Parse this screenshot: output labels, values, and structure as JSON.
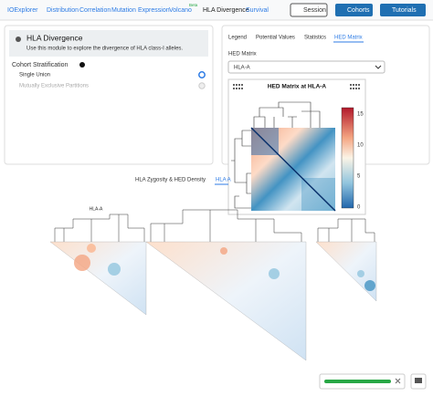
{
  "navbar": {
    "brand": "IOExplorer",
    "links": [
      "Distribution",
      "Correlation",
      "Mutation",
      "Expression",
      "Volcano",
      "HLA Divergence",
      "Survival"
    ],
    "beta": "Beta",
    "buttons": [
      "Session",
      "Cohorts",
      "Tutorials"
    ]
  },
  "module": {
    "title": "HLA Divergence",
    "description": "Use this module to explore the divergence of HLA class-I alleles.",
    "stratification_label": "Cohort Stratification",
    "options": [
      "Single Union",
      "Mutually Exclusive Partitions"
    ]
  },
  "panel": {
    "tabs": [
      "Legend",
      "Potential Values",
      "Statistics",
      "HED Matrix"
    ],
    "field_label": "HED Matrix",
    "select_value": "HLA-A",
    "plot_title": "HED Matrix at HLA-A",
    "colorbar_ticks": [
      15,
      10,
      5,
      0
    ]
  },
  "lower": {
    "tabs": [
      "HLA Zygosity & HED Density",
      "HLA A"
    ],
    "locus_label": "HLA-A"
  }
}
